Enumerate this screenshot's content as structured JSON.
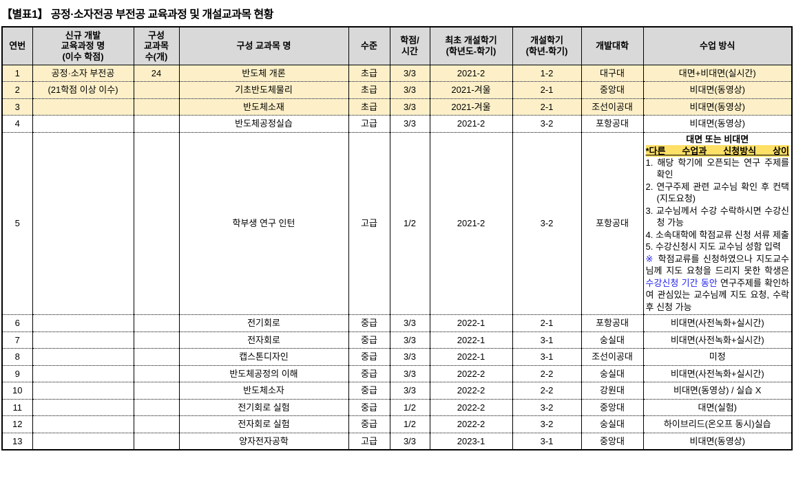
{
  "title": "【별표1】 공정·소자전공 부전공 교육과정 및 개설교과목 현황",
  "colors": {
    "header_bg": "#d9d9d9",
    "row_highlight_bg": "#fdf0c8",
    "notice_highlight_bg": "#ffe066",
    "link_blue": "#2222ee"
  },
  "table": {
    "headers": [
      "연번",
      "신규 개발\n교육과정 명\n(이수 학점)",
      "구성\n교과목\n수(개)",
      "구성 교과목 명",
      "수준",
      "학점/\n시간",
      "최초 개설학기\n(학년도-학기)",
      "개설학기\n(학년-학기)",
      "개발대학",
      "수업 방식"
    ],
    "rows": [
      {
        "no": "1",
        "program": "공정·소자 부전공",
        "count": "24",
        "course": "반도체 개론",
        "level": "초급",
        "credit": "3/3",
        "first_term": "2021-2",
        "term": "1-2",
        "univ": "대구대",
        "method": "대면+비대면(실시간)",
        "highlight": true,
        "special": false
      },
      {
        "no": "2",
        "program": "(21학점 이상 이수)",
        "count": "",
        "course": "기초반도체물리",
        "level": "초급",
        "credit": "3/3",
        "first_term": "2021-겨울",
        "term": "2-1",
        "univ": "중앙대",
        "method": "비대면(동영상)",
        "highlight": true,
        "special": false
      },
      {
        "no": "3",
        "program": "",
        "count": "",
        "course": "반도체소재",
        "level": "초급",
        "credit": "3/3",
        "first_term": "2021-겨울",
        "term": "2-1",
        "univ": "조선이공대",
        "method": "비대면(동영상)",
        "highlight": true,
        "special": false
      },
      {
        "no": "4",
        "program": "",
        "count": "",
        "course": "반도체공정실습",
        "level": "고급",
        "credit": "3/3",
        "first_term": "2021-2",
        "term": "3-2",
        "univ": "포항공대",
        "method": "비대면(동영상)",
        "highlight": false,
        "special": false
      },
      {
        "no": "5",
        "program": "",
        "count": "",
        "course": "학부생 연구 인턴",
        "level": "고급",
        "credit": "1/2",
        "first_term": "2021-2",
        "term": "3-2",
        "univ": "포항공대",
        "method": "",
        "highlight": false,
        "special": true
      },
      {
        "no": "6",
        "program": "",
        "count": "",
        "course": "전기회로",
        "level": "중급",
        "credit": "3/3",
        "first_term": "2022-1",
        "term": "2-1",
        "univ": "포항공대",
        "method": "비대면(사전녹화+실시간)",
        "highlight": false,
        "special": false
      },
      {
        "no": "7",
        "program": "",
        "count": "",
        "course": "전자회로",
        "level": "중급",
        "credit": "3/3",
        "first_term": "2022-1",
        "term": "3-1",
        "univ": "숭실대",
        "method": "비대면(사전녹화+실시간)",
        "highlight": false,
        "special": false
      },
      {
        "no": "8",
        "program": "",
        "count": "",
        "course": "캡스톤디자인",
        "level": "중급",
        "credit": "3/3",
        "first_term": "2022-1",
        "term": "3-1",
        "univ": "조선이공대",
        "method": "미정",
        "highlight": false,
        "special": false
      },
      {
        "no": "9",
        "program": "",
        "count": "",
        "course": "반도체공정의 이해",
        "level": "중급",
        "credit": "3/3",
        "first_term": "2022-2",
        "term": "2-2",
        "univ": "숭실대",
        "method": "비대면(사전녹화+실시간)",
        "highlight": false,
        "special": false
      },
      {
        "no": "10",
        "program": "",
        "count": "",
        "course": "반도체소자",
        "level": "중급",
        "credit": "3/3",
        "first_term": "2022-2",
        "term": "2-2",
        "univ": "강원대",
        "method": "비대면(동영상) / 실습 X",
        "highlight": false,
        "special": false
      },
      {
        "no": "11",
        "program": "",
        "count": "",
        "course": "전기회로 실험",
        "level": "중급",
        "credit": "1/2",
        "first_term": "2022-2",
        "term": "3-2",
        "univ": "중앙대",
        "method": "대면(실험)",
        "highlight": false,
        "special": false
      },
      {
        "no": "12",
        "program": "",
        "count": "",
        "course": "전자회로 실험",
        "level": "중급",
        "credit": "1/2",
        "first_term": "2022-2",
        "term": "3-2",
        "univ": "숭실대",
        "method": "하이브리드(온오프 동시)실습",
        "highlight": false,
        "special": false
      },
      {
        "no": "13",
        "program": "",
        "count": "",
        "course": "양자전자공학",
        "level": "고급",
        "credit": "3/3",
        "first_term": "2023-1",
        "term": "3-1",
        "univ": "중앙대",
        "method": "비대면(동영상)",
        "highlight": false,
        "special": false
      }
    ]
  },
  "special_method": {
    "headline": "대면 또는 비대면",
    "notice": "*다른 수업과 신청방식 상이",
    "steps": [
      "1. 해당 학기에 오픈되는 연구 주제를 확인",
      "2. 연구주제 관련 교수님 확인 후 컨택(지도요청)",
      "3. 교수님께서 수강 수락하시면 수강신청 가능",
      "4. 소속대학에 학점교류 신청 서류 제출",
      "5. 수강신청시 지도 교수님 성함 입력"
    ],
    "note": {
      "marker": "※",
      "part1": " 학점교류를 신청하였으나 지도교수님께 지도 요청을 드리지 못한 학생은 ",
      "blue": "수강신청 기간 동안",
      "part2": " 연구주제를 확인하여 관심있는 교수님께 지도 요청, 수락 후 신청 가능"
    }
  }
}
